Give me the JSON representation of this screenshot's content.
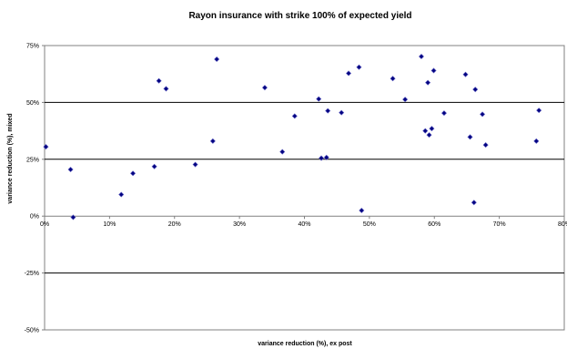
{
  "chart_data": {
    "type": "scatter",
    "title": "Rayon insurance with strike 100% of expected yield",
    "xlabel": "variance reduction (%), ex post",
    "ylabel": "variance reduction (%), mixed",
    "xlim": [
      0,
      80
    ],
    "ylim": [
      -50,
      75
    ],
    "x_ticks": [
      "0%",
      "10%",
      "20%",
      "30%",
      "40%",
      "50%",
      "60%",
      "70%",
      "80%"
    ],
    "y_ticks": [
      "-50%",
      "-25%",
      "0%",
      "25%",
      "50%",
      "75%"
    ],
    "horizontal_gridlines": [
      -25,
      25,
      50
    ],
    "grid": true,
    "legend": "none",
    "marker_color": "#000080",
    "points": [
      {
        "x": 0.2,
        "y": 30.5
      },
      {
        "x": 4.0,
        "y": 20.5
      },
      {
        "x": 4.4,
        "y": -0.5
      },
      {
        "x": 11.8,
        "y": 9.5
      },
      {
        "x": 13.6,
        "y": 18.8
      },
      {
        "x": 16.9,
        "y": 21.8
      },
      {
        "x": 17.6,
        "y": 59.5
      },
      {
        "x": 18.7,
        "y": 56.0
      },
      {
        "x": 23.2,
        "y": 22.7
      },
      {
        "x": 25.9,
        "y": 33.0
      },
      {
        "x": 26.5,
        "y": 69.0
      },
      {
        "x": 33.9,
        "y": 56.5
      },
      {
        "x": 36.6,
        "y": 28.3
      },
      {
        "x": 38.5,
        "y": 44.0
      },
      {
        "x": 42.2,
        "y": 51.5
      },
      {
        "x": 42.6,
        "y": 25.5
      },
      {
        "x": 43.4,
        "y": 25.8
      },
      {
        "x": 43.6,
        "y": 46.3
      },
      {
        "x": 45.7,
        "y": 45.5
      },
      {
        "x": 46.8,
        "y": 62.8
      },
      {
        "x": 48.4,
        "y": 65.5
      },
      {
        "x": 48.8,
        "y": 2.5
      },
      {
        "x": 53.6,
        "y": 60.5
      },
      {
        "x": 55.5,
        "y": 51.3
      },
      {
        "x": 58.0,
        "y": 70.2
      },
      {
        "x": 58.6,
        "y": 37.5
      },
      {
        "x": 59.0,
        "y": 58.7
      },
      {
        "x": 59.2,
        "y": 35.7
      },
      {
        "x": 59.6,
        "y": 38.5
      },
      {
        "x": 59.9,
        "y": 64.0
      },
      {
        "x": 61.5,
        "y": 45.3
      },
      {
        "x": 64.8,
        "y": 62.3
      },
      {
        "x": 65.5,
        "y": 34.8
      },
      {
        "x": 66.1,
        "y": 6.0
      },
      {
        "x": 66.3,
        "y": 55.7
      },
      {
        "x": 67.4,
        "y": 44.8
      },
      {
        "x": 67.9,
        "y": 31.3
      },
      {
        "x": 75.7,
        "y": 33.0
      },
      {
        "x": 76.1,
        "y": 46.5
      }
    ]
  }
}
